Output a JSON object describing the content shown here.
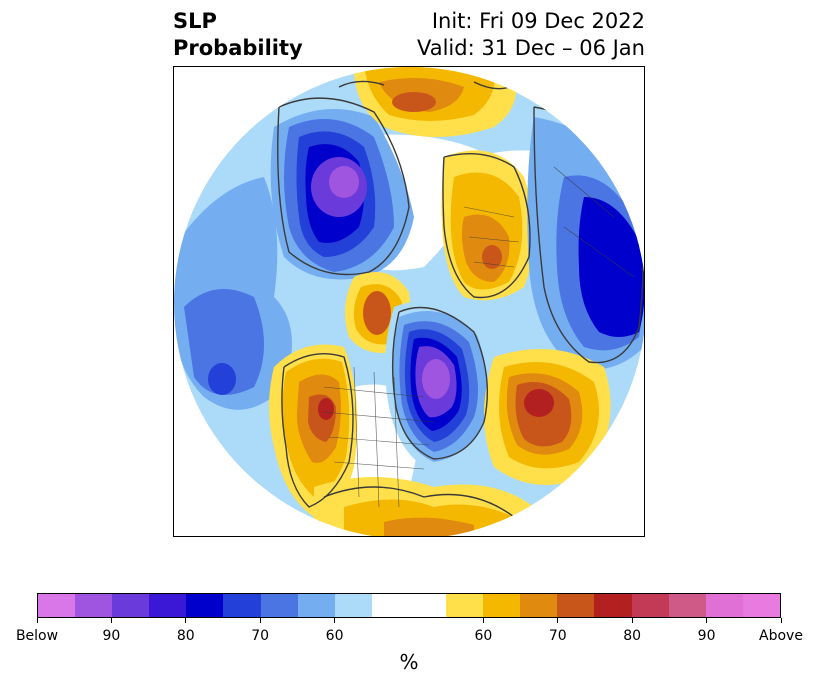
{
  "header": {
    "title_line1": "SLP",
    "title_line2": "Probability",
    "init_text": "Init: Fri 09 Dec 2022",
    "valid_text": "Valid: 31 Dec – 06 Jan"
  },
  "colorbar": {
    "colors": [
      "#d977e8",
      "#9f55e0",
      "#6b3adb",
      "#3a18d6",
      "#0000cc",
      "#2340d8",
      "#4a75e3",
      "#74aef0",
      "#acdaf9",
      "#ffffff",
      "#ffffff",
      "#ffe04a",
      "#f5b800",
      "#e08a10",
      "#c8561a",
      "#b32020",
      "#c23a56",
      "#cf5a88",
      "#e070d6",
      "#e87ae0"
    ],
    "tick_labels": [
      "Below",
      "90",
      "80",
      "70",
      "60",
      "60",
      "70",
      "80",
      "90",
      "Above"
    ],
    "unit_label": "%"
  },
  "map": {
    "colors": {
      "light_blue": "#acdaf9",
      "blue1": "#74aef0",
      "blue2": "#4a75e3",
      "blue3": "#2340d8",
      "blue4": "#0000cc",
      "purple": "#6b3adb",
      "violet": "#9f55e0",
      "yellow1": "#ffe04a",
      "yellow2": "#f5b800",
      "orange": "#e08a10",
      "dark_orange": "#c8561a",
      "red": "#b32020",
      "border": "#3a3a3a"
    }
  }
}
